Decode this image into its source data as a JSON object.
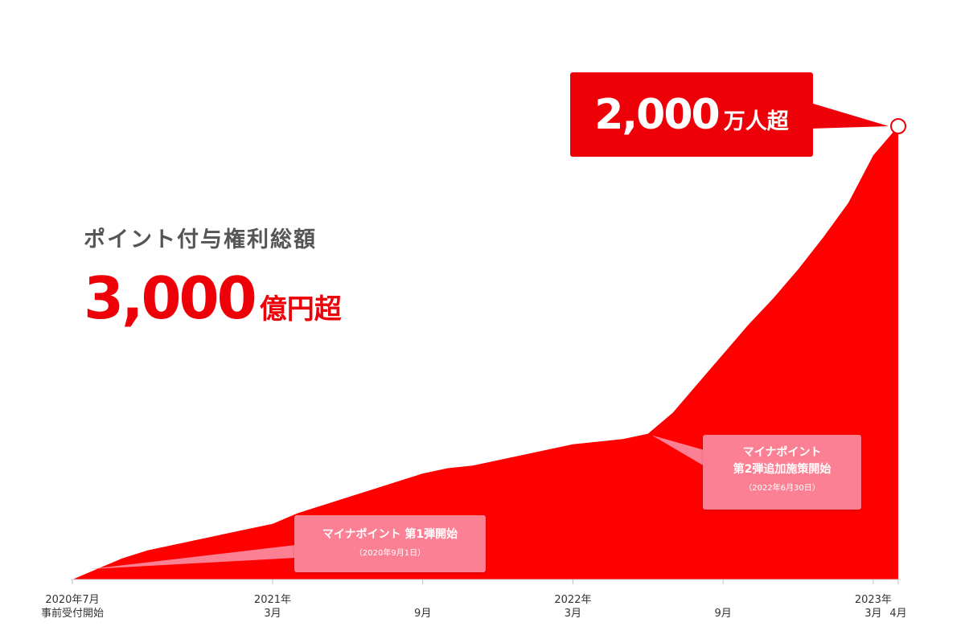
{
  "summary": {
    "label": "ポイント付与権利総額",
    "amount": "3,000",
    "unit": "億円超"
  },
  "peak_callout": {
    "number": "2,000",
    "unit": "万人超"
  },
  "annotations": [
    {
      "title": "マイナポイント 第1弾開始",
      "date": "（2020年9月1日）"
    },
    {
      "title": "マイナポイント\n第2弾追加施策開始",
      "date": "（2022年6月30日）"
    }
  ],
  "chart_data": {
    "type": "area",
    "x": [
      "2020-07",
      "2020-08",
      "2020-09",
      "2020-10",
      "2020-11",
      "2020-12",
      "2021-01",
      "2021-02",
      "2021-03",
      "2021-04",
      "2021-05",
      "2021-06",
      "2021-07",
      "2021-08",
      "2021-09",
      "2021-10",
      "2021-11",
      "2021-12",
      "2022-01",
      "2022-02",
      "2022-03",
      "2022-04",
      "2022-05",
      "2022-06",
      "2022-07",
      "2022-08",
      "2022-09",
      "2022-10",
      "2022-11",
      "2022-12",
      "2023-01",
      "2023-02",
      "2023-03",
      "2023-04"
    ],
    "values": [
      0,
      4,
      8,
      11,
      13,
      15,
      17,
      19,
      21,
      25,
      28,
      31,
      34,
      37,
      40,
      42,
      43,
      45,
      47,
      49,
      51,
      52,
      53,
      55,
      63,
      74,
      85,
      96,
      106,
      117,
      129,
      142,
      160,
      171
    ],
    "tick_labels": [
      {
        "x": "2020-07",
        "label": "2020年7月\n事前受付開始"
      },
      {
        "x": "2021-03",
        "label": "2021年\n3月"
      },
      {
        "x": "2021-09",
        "label": "\n9月"
      },
      {
        "x": "2022-03",
        "label": "2022年\n3月"
      },
      {
        "x": "2022-09",
        "label": "\n9月"
      },
      {
        "x": "2023-03",
        "label": "2023年\n3月"
      },
      {
        "x": "2023-04",
        "label": "\n4月"
      }
    ],
    "colors": {
      "area": "#ff0000",
      "callout": "#ee0008",
      "annotation": "#fb8093"
    }
  }
}
